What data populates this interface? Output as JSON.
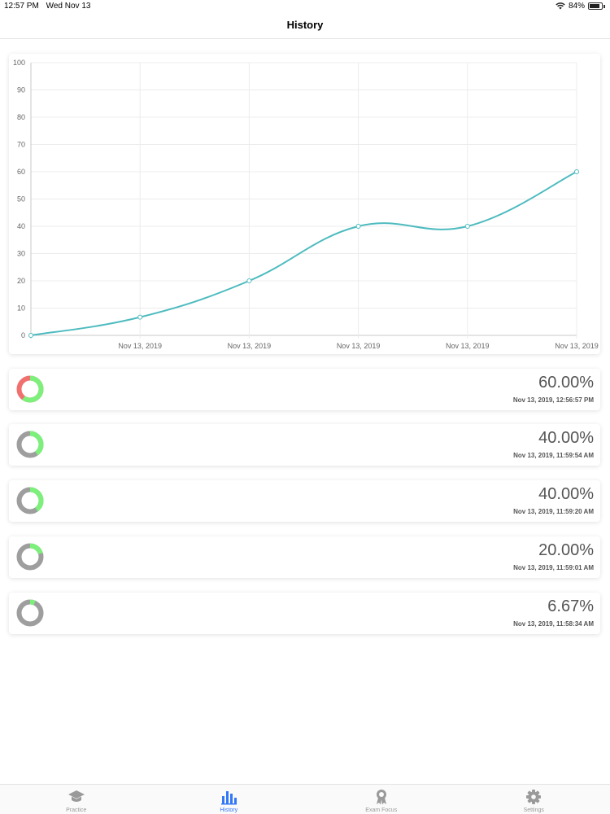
{
  "status_bar": {
    "time": "12:57 PM",
    "date": "Wed Nov 13",
    "battery": "84%",
    "battery_level": 0.84
  },
  "nav": {
    "title": "History"
  },
  "chart_data": {
    "type": "line",
    "x": [
      "",
      "Nov 13, 2019",
      "Nov 13, 2019",
      "Nov 13, 2019",
      "Nov 13, 2019",
      "Nov 13, 2019"
    ],
    "series": [
      {
        "values": [
          0,
          6.67,
          20,
          40,
          40,
          60
        ]
      }
    ],
    "yticks": [
      "100",
      "90",
      "80",
      "70",
      "60",
      "50",
      "40",
      "30",
      "20",
      "10",
      "0"
    ],
    "ylim": [
      0,
      100
    ],
    "grid": true,
    "line_color": "#4dbbbf"
  },
  "history": [
    {
      "score": "60.00%",
      "fraction": 0.6,
      "date": "Nov 13, 2019, 12:56:57 PM",
      "remainder_color": "#f07070"
    },
    {
      "score": "40.00%",
      "fraction": 0.4,
      "date": "Nov 13, 2019, 11:59:54 AM",
      "remainder_color": "#9e9e9e"
    },
    {
      "score": "40.00%",
      "fraction": 0.4,
      "date": "Nov 13, 2019, 11:59:20 AM",
      "remainder_color": "#9e9e9e"
    },
    {
      "score": "20.00%",
      "fraction": 0.2,
      "date": "Nov 13, 2019, 11:59:01 AM",
      "remainder_color": "#9e9e9e"
    },
    {
      "score": "6.67%",
      "fraction": 0.0667,
      "date": "Nov 13, 2019, 11:58:34 AM",
      "remainder_color": "#9e9e9e"
    }
  ],
  "colors": {
    "correct": "#7cf07a",
    "accent": "#3478f6",
    "inactive": "#9a9a9a"
  },
  "tabs": [
    {
      "label": "Practice",
      "icon": "graduation-cap-icon",
      "active": false
    },
    {
      "label": "History",
      "icon": "bar-chart-icon",
      "active": true
    },
    {
      "label": "Exam Focus",
      "icon": "award-icon",
      "active": false
    },
    {
      "label": "Settings",
      "icon": "gear-icon",
      "active": false
    }
  ]
}
